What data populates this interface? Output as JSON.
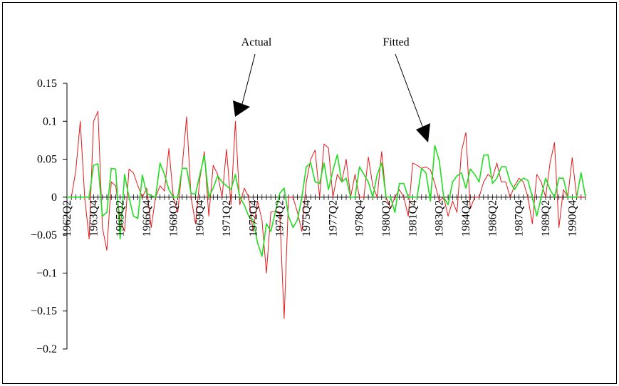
{
  "chart_data": {
    "type": "line",
    "title": "",
    "xlabel": "",
    "ylabel": "",
    "ylim": [
      -0.2,
      0.15
    ],
    "yticks": [
      {
        "value": 0.15,
        "label": "0.15"
      },
      {
        "value": 0.1,
        "label": "0.1"
      },
      {
        "value": 0.05,
        "label": "0.05"
      },
      {
        "value": 0,
        "label": "0"
      },
      {
        "value": -0.05,
        "label": "−0.05"
      },
      {
        "value": -0.1,
        "label": "−0.1"
      },
      {
        "value": -0.15,
        "label": "−0.15"
      },
      {
        "value": -0.2,
        "label": "−0.2"
      }
    ],
    "xticks": [
      {
        "index": 0,
        "label": "1962Q2"
      },
      {
        "index": 6,
        "label": "1963Q4"
      },
      {
        "index": 12,
        "label": "1965Q2"
      },
      {
        "index": 18,
        "label": "1966Q4"
      },
      {
        "index": 24,
        "label": "1968Q2"
      },
      {
        "index": 30,
        "label": "1969Q4"
      },
      {
        "index": 36,
        "label": "1971Q2"
      },
      {
        "index": 42,
        "label": "1972Q4"
      },
      {
        "index": 48,
        "label": "1974Q2"
      },
      {
        "index": 54,
        "label": "1975Q4"
      },
      {
        "index": 60,
        "label": "1977Q2"
      },
      {
        "index": 66,
        "label": "1978Q4"
      },
      {
        "index": 72,
        "label": "1980Q2"
      },
      {
        "index": 78,
        "label": "1981Q4"
      },
      {
        "index": 84,
        "label": "1983Q2"
      },
      {
        "index": 90,
        "label": "1984Q4"
      },
      {
        "index": 96,
        "label": "1986Q2"
      },
      {
        "index": 102,
        "label": "1987Q4"
      },
      {
        "index": 108,
        "label": "1989Q2"
      },
      {
        "index": 114,
        "label": "1990Q4"
      }
    ],
    "n_points": 118,
    "series": [
      {
        "name": "Actual",
        "color": "#e41a1c",
        "values": [
          0.0,
          0.0,
          0.035,
          0.1,
          0.0,
          -0.055,
          0.1,
          0.113,
          -0.04,
          -0.07,
          0.02,
          0.015,
          -0.03,
          -0.045,
          0.037,
          0.032,
          0.015,
          0.0,
          0.012,
          -0.04,
          0.0,
          0.015,
          0.008,
          0.064,
          0.0,
          -0.02,
          0.04,
          0.106,
          0.0,
          -0.035,
          0.025,
          0.06,
          -0.025,
          0.042,
          0.03,
          0.0,
          0.063,
          -0.01,
          0.1,
          -0.01,
          0.012,
          0.0,
          -0.045,
          -0.005,
          -0.03,
          -0.1,
          -0.02,
          -0.018,
          -0.02,
          -0.16,
          0.0,
          0.0,
          -0.02,
          -0.045,
          0.02,
          0.05,
          0.062,
          0.0,
          0.07,
          0.065,
          0.0,
          0.03,
          0.02,
          0.05,
          0.0,
          0.03,
          0.0,
          0.0,
          0.053,
          0.015,
          0.0,
          0.06,
          0.0,
          -0.015,
          0.0,
          0.01,
          0.0,
          -0.025,
          0.045,
          0.042,
          0.038,
          0.04,
          0.036,
          0.018,
          -0.005,
          0.0,
          -0.025,
          -0.005,
          -0.02,
          0.06,
          0.085,
          -0.015,
          0.0,
          0.0,
          0.02,
          0.03,
          0.025,
          0.045,
          0.02,
          0.02,
          0.0,
          0.015,
          0.025,
          0.02,
          0.0,
          -0.035,
          0.03,
          0.02,
          0.0,
          0.045,
          0.072,
          -0.04,
          0.01,
          0.0,
          0.052,
          0.0,
          0.0,
          0.0
        ]
      },
      {
        "name": "Fitted",
        "color": "#22dd22",
        "values": [
          0.0,
          0.0,
          0.0,
          0.0,
          0.0,
          0.0,
          0.042,
          0.044,
          -0.025,
          -0.02,
          0.038,
          0.037,
          -0.055,
          0.03,
          0.0,
          -0.025,
          -0.028,
          0.029,
          0.005,
          0.002,
          0.0,
          0.045,
          0.03,
          0.01,
          0.0,
          0.0,
          0.038,
          0.038,
          0.005,
          0.004,
          0.03,
          0.055,
          0.0,
          0.012,
          0.028,
          0.02,
          0.015,
          0.01,
          0.03,
          0.0,
          -0.01,
          -0.025,
          -0.03,
          -0.06,
          -0.078,
          -0.035,
          -0.045,
          -0.02,
          0.005,
          0.012,
          -0.025,
          -0.04,
          -0.03,
          0.0,
          0.04,
          0.045,
          0.02,
          0.018,
          0.045,
          0.01,
          0.035,
          0.056,
          0.02,
          0.025,
          0.0,
          0.0,
          0.04,
          0.03,
          0.02,
          0.0,
          0.03,
          0.045,
          0.0,
          0.0,
          -0.02,
          0.018,
          0.018,
          0.0,
          0.0,
          0.0,
          0.038,
          0.032,
          -0.005,
          0.068,
          0.048,
          0.0,
          -0.01,
          0.02,
          0.028,
          0.032,
          0.012,
          0.037,
          0.03,
          0.02,
          0.055,
          0.056,
          0.018,
          0.025,
          0.04,
          0.04,
          0.02,
          0.01,
          0.02,
          0.025,
          0.022,
          0.0,
          -0.025,
          0.0,
          0.025,
          0.01,
          0.0,
          0.025,
          0.025,
          0.0,
          0.0,
          0.0,
          0.032,
          0.0
        ]
      }
    ],
    "annotations": [
      {
        "text": "Actual"
      },
      {
        "text": "Fitted"
      }
    ]
  }
}
